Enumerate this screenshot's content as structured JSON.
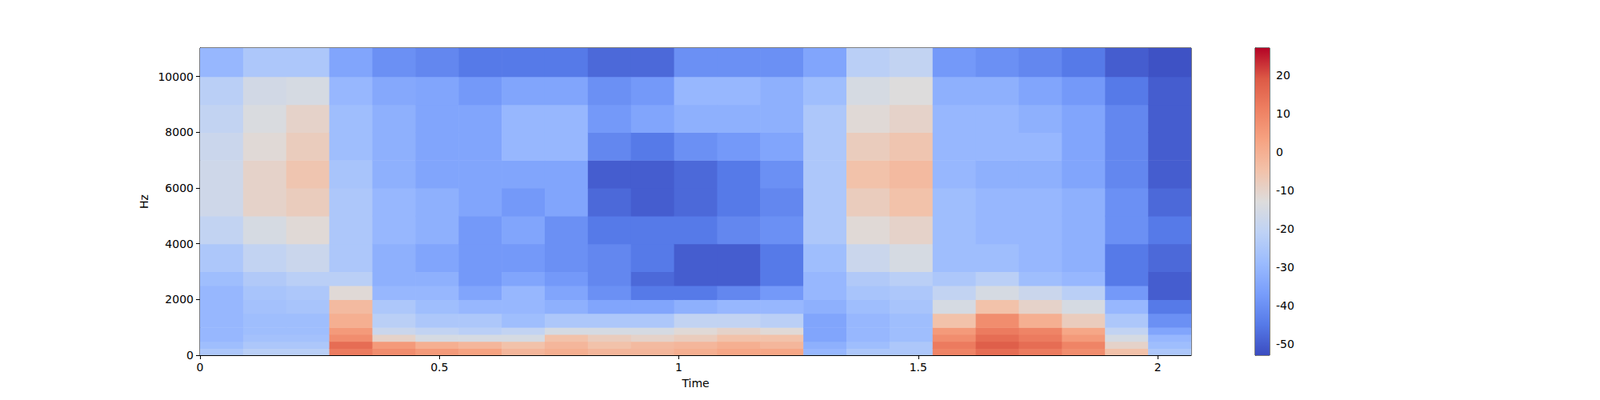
{
  "chart_data": {
    "type": "heatmap",
    "xlabel": "Time",
    "ylabel": "Hz",
    "xlim": [
      0,
      2.07
    ],
    "xticks": [
      0,
      0.5,
      1,
      1.5,
      2
    ],
    "ylim": [
      0,
      11025
    ],
    "yticks": [
      0,
      2000,
      4000,
      6000,
      8000,
      10000
    ],
    "time_edges": [
      0,
      0.09,
      0.18,
      0.27,
      0.36,
      0.45,
      0.54,
      0.63,
      0.72,
      0.81,
      0.9,
      0.99,
      1.08,
      1.17,
      1.26,
      1.35,
      1.44,
      1.53,
      1.62,
      1.71,
      1.8,
      1.89,
      1.98,
      2.07
    ],
    "freq_edges": [
      0,
      250,
      500,
      750,
      1000,
      1500,
      2000,
      2500,
      3000,
      4000,
      5000,
      6000,
      7000,
      8000,
      9000,
      10000,
      11025
    ],
    "cells": [
      [
        -25,
        -28,
        -30,
        -30,
        -30,
        -30,
        -30,
        -28,
        -25,
        -20,
        -17,
        -17,
        -18,
        -20,
        -22,
        -30
      ],
      [
        -22,
        -25,
        -27,
        -28,
        -28,
        -27,
        -26,
        -24,
        -20,
        -15,
        -10,
        -10,
        -12,
        -14,
        -16,
        -25
      ],
      [
        -22,
        -25,
        -27,
        -28,
        -28,
        -26,
        -25,
        -22,
        -18,
        -12,
        -8,
        -6,
        -8,
        -10,
        -15,
        -25
      ],
      [
        12,
        15,
        8,
        5,
        0,
        -3,
        -12,
        -22,
        -25,
        -25,
        -25,
        -26,
        -28,
        -28,
        -30,
        -35
      ],
      [
        8,
        5,
        -10,
        -18,
        -22,
        -25,
        -30,
        -32,
        -32,
        -30,
        -30,
        -32,
        -32,
        -32,
        -34,
        -40
      ],
      [
        5,
        0,
        -15,
        -20,
        -25,
        -28,
        -30,
        -32,
        -35,
        -32,
        -32,
        -35,
        -35,
        -35,
        -35,
        -42
      ],
      [
        3,
        -2,
        -15,
        -22,
        -25,
        -30,
        -35,
        -38,
        -38,
        -38,
        -35,
        -35,
        -35,
        -35,
        -38,
        -45
      ],
      [
        -2,
        -5,
        -15,
        -20,
        -28,
        -30,
        -30,
        -35,
        -38,
        -35,
        -38,
        -35,
        -30,
        -30,
        -35,
        -45
      ],
      [
        0,
        -2,
        -5,
        -15,
        -25,
        -32,
        -35,
        -38,
        -40,
        -40,
        -35,
        -35,
        -30,
        -30,
        -35,
        -45
      ],
      [
        -2,
        -5,
        -8,
        -15,
        -25,
        -35,
        -40,
        -42,
        -42,
        -45,
        -48,
        -50,
        -42,
        -38,
        -40,
        -48
      ],
      [
        -2,
        -3,
        -10,
        -15,
        -25,
        -35,
        -45,
        -48,
        -45,
        -45,
        -50,
        -50,
        -45,
        -35,
        -38,
        -48
      ],
      [
        0,
        -2,
        -8,
        -12,
        -20,
        -32,
        -45,
        -50,
        -50,
        -45,
        -48,
        -48,
        -40,
        -32,
        -30,
        -40
      ],
      [
        2,
        0,
        -5,
        -10,
        -20,
        -30,
        -42,
        -50,
        -50,
        -42,
        -45,
        -45,
        -38,
        -32,
        -30,
        -40
      ],
      [
        2,
        -2,
        -5,
        -12,
        -22,
        -30,
        -38,
        -45,
        -45,
        -40,
        -42,
        -40,
        -35,
        -32,
        -32,
        -40
      ],
      [
        -30,
        -32,
        -35,
        -35,
        -35,
        -32,
        -30,
        -30,
        -28,
        -25,
        -25,
        -25,
        -25,
        -25,
        -28,
        -35
      ],
      [
        -25,
        -28,
        -30,
        -30,
        -30,
        -28,
        -26,
        -24,
        -18,
        -12,
        -8,
        -5,
        -8,
        -12,
        -15,
        -22
      ],
      [
        -25,
        -25,
        -28,
        -28,
        -28,
        -26,
        -25,
        -22,
        -15,
        -10,
        -5,
        -3,
        -6,
        -10,
        -13,
        -20
      ],
      [
        10,
        12,
        8,
        5,
        -5,
        -15,
        -20,
        -25,
        -28,
        -28,
        -28,
        -30,
        -30,
        -30,
        -32,
        -38
      ],
      [
        15,
        18,
        15,
        12,
        8,
        -5,
        -15,
        -22,
        -28,
        -30,
        -30,
        -32,
        -30,
        -30,
        -32,
        -40
      ],
      [
        12,
        15,
        12,
        10,
        0,
        -10,
        -18,
        -28,
        -30,
        -30,
        -30,
        -32,
        -30,
        -32,
        -35,
        -42
      ],
      [
        8,
        10,
        5,
        2,
        -8,
        -15,
        -22,
        -30,
        -32,
        -32,
        -32,
        -35,
        -35,
        -35,
        -38,
        -45
      ],
      [
        -5,
        -10,
        -15,
        -20,
        -25,
        -30,
        -38,
        -45,
        -45,
        -40,
        -40,
        -42,
        -42,
        -42,
        -45,
        -50
      ],
      [
        -25,
        -28,
        -30,
        -35,
        -40,
        -45,
        -50,
        -50,
        -48,
        -45,
        -48,
        -50,
        -50,
        -50,
        -50,
        -52
      ]
    ],
    "colorbar": {
      "range": [
        -53,
        27
      ],
      "ticks": [
        -50,
        -40,
        -30,
        -20,
        -10,
        0,
        10,
        20
      ]
    }
  }
}
